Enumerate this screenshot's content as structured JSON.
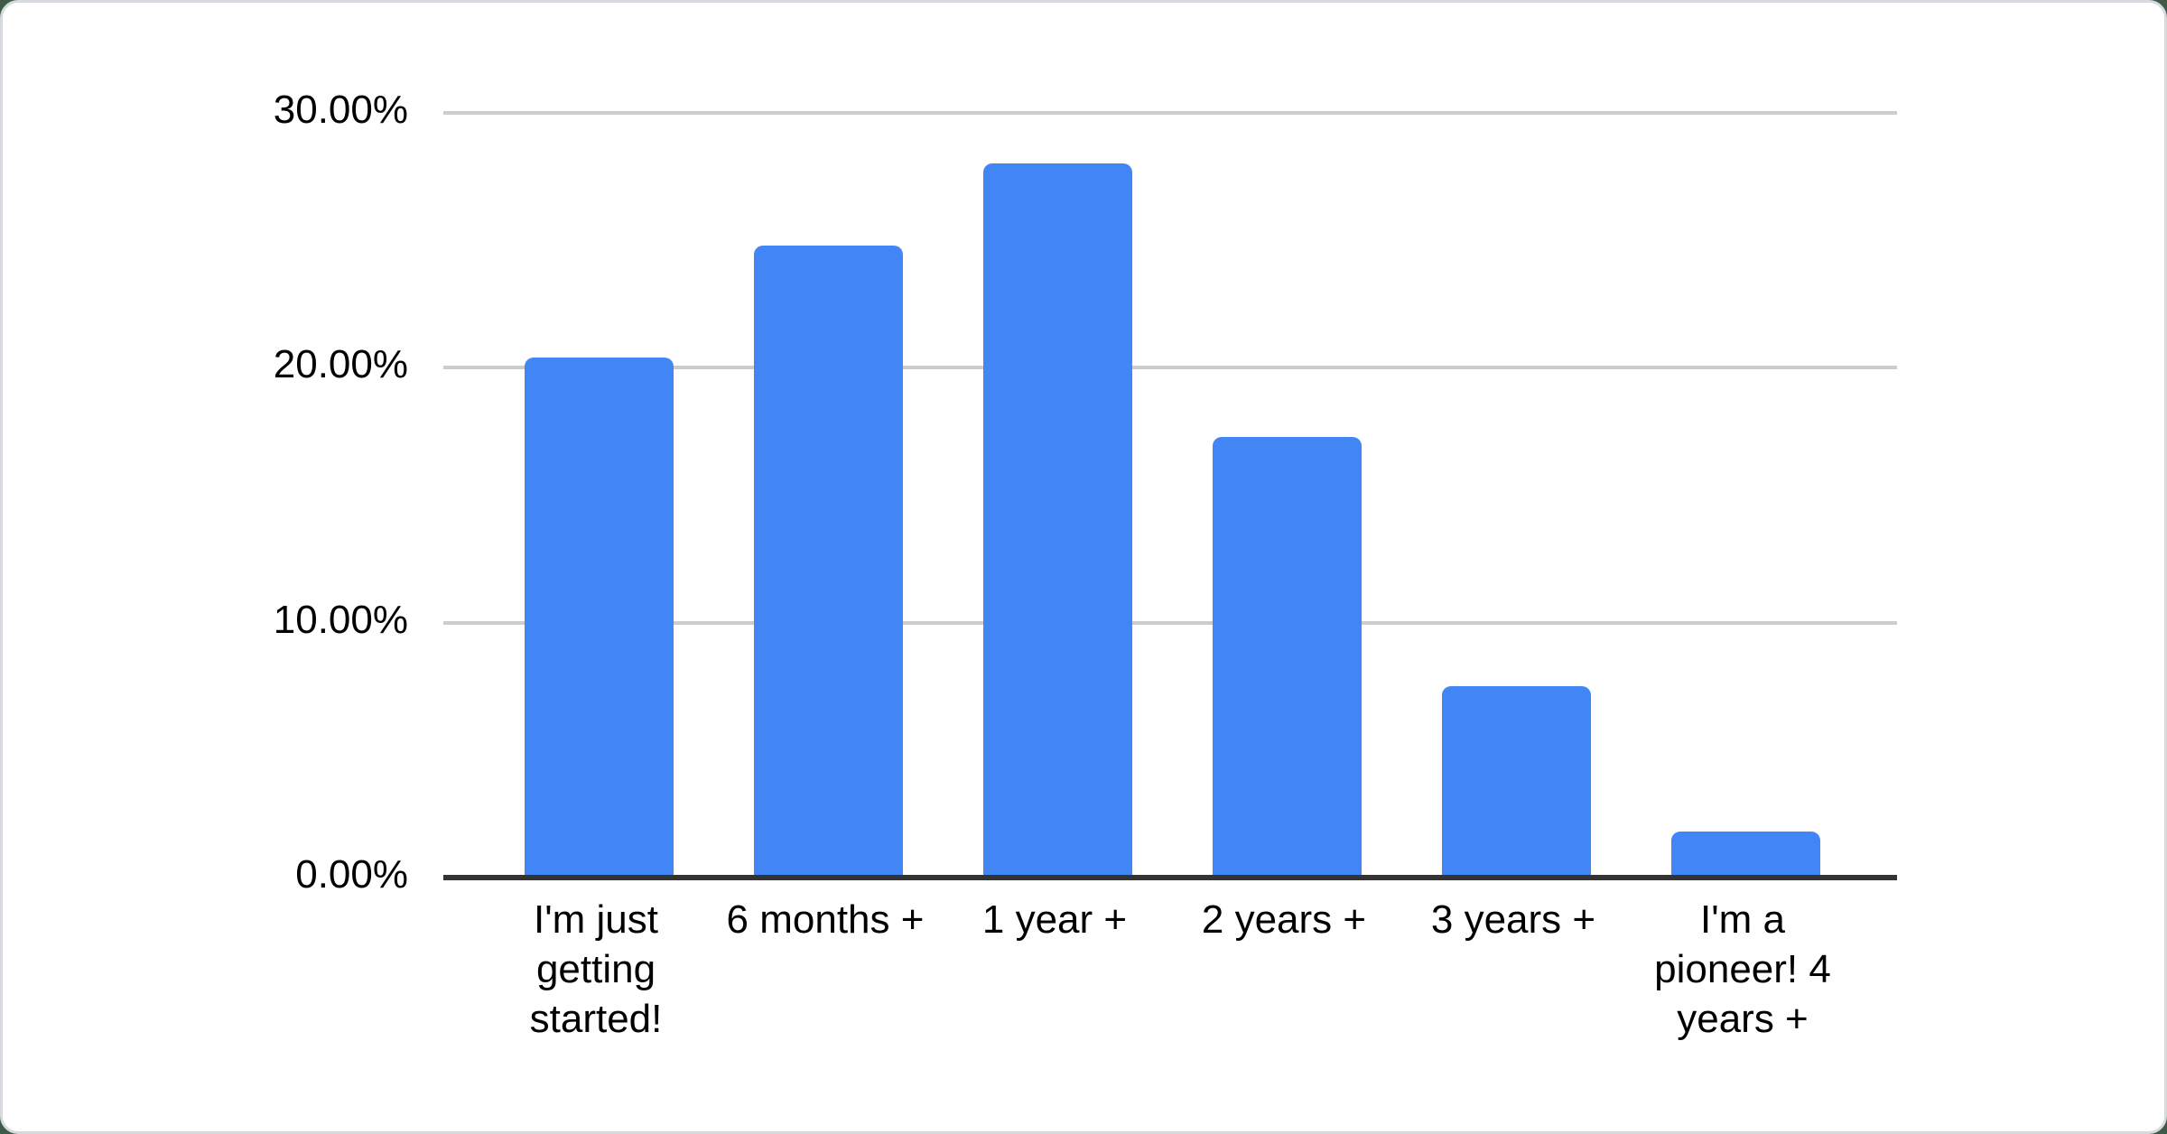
{
  "page": {
    "background_color": "#3e5a48",
    "card_background": "#ffffff",
    "card_border_color": "#d6dade"
  },
  "chart_data": {
    "type": "bar",
    "title": "",
    "xlabel": "",
    "ylabel": "",
    "categories": [
      "I'm just getting started!",
      "6 months +",
      "1 year +",
      "2 years +",
      "3 years +",
      "I'm a pioneer! 4 years +"
    ],
    "values": [
      20.4,
      24.8,
      28.0,
      17.3,
      7.5,
      1.8
    ],
    "ylim": [
      0,
      30
    ],
    "y_ticks": [
      {
        "value": 0,
        "label": "0.00%"
      },
      {
        "value": 10,
        "label": "10.00%"
      },
      {
        "value": 20,
        "label": "20.00%"
      },
      {
        "value": 30,
        "label": "30.00%"
      }
    ],
    "grid": true,
    "legend_position": "none",
    "bar_color": "#4285f4",
    "gridline_color": "#cccccc",
    "axis_line_color": "#333333",
    "label_color": "#000000"
  }
}
